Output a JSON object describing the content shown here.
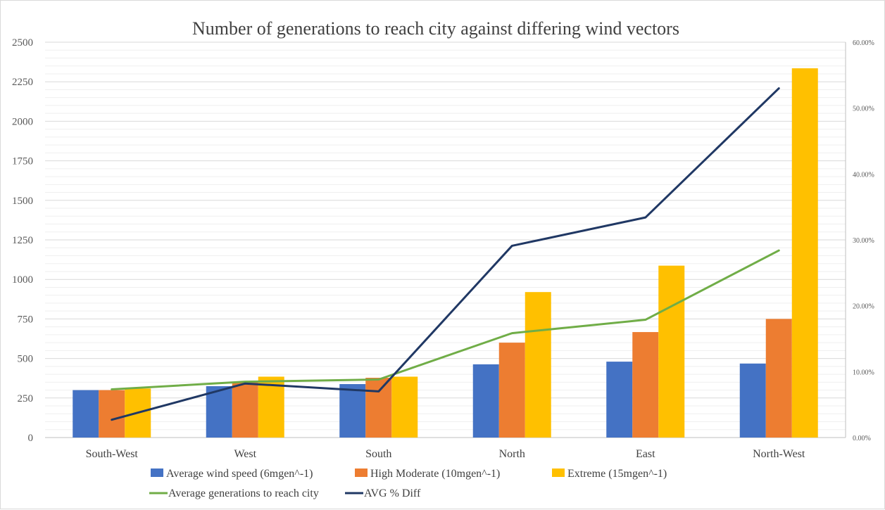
{
  "chart_data": {
    "type": "bar",
    "title": "Number of generations to reach city against differing wind vectors",
    "categories": [
      "South-West",
      "West",
      "South",
      "North",
      "East",
      "North-West"
    ],
    "y_left": {
      "min": 0,
      "max": 2500,
      "step": 250,
      "minor_step": 50
    },
    "y_right": {
      "min": 0,
      "max": 0.6,
      "step": 0.1,
      "format": "percent-2dp"
    },
    "series": [
      {
        "name": "Average wind speed (6mgen^-1)",
        "kind": "bar",
        "axis": "left",
        "color": "#4472C4",
        "values": [
          300,
          325,
          338,
          463,
          480,
          468
        ]
      },
      {
        "name": "High Moderate (10mgen^-1)",
        "kind": "bar",
        "axis": "left",
        "color": "#ED7D31",
        "values": [
          300,
          350,
          378,
          600,
          667,
          750
        ]
      },
      {
        "name": "Extreme (15mgen^-1)",
        "kind": "bar",
        "axis": "left",
        "color": "#FFC000",
        "values": [
          310,
          385,
          385,
          920,
          1087,
          2335
        ]
      },
      {
        "name": "Average generations to reach city",
        "kind": "line",
        "axis": "left",
        "color": "#70AD47",
        "values": [
          305,
          353,
          367,
          660,
          745,
          1183
        ]
      },
      {
        "name": "AVG % Diff",
        "kind": "line",
        "axis": "right",
        "color": "#203864",
        "values": [
          0.027,
          0.082,
          0.07,
          0.291,
          0.334,
          0.53
        ]
      }
    ],
    "grid": true,
    "legend_position": "bottom"
  }
}
